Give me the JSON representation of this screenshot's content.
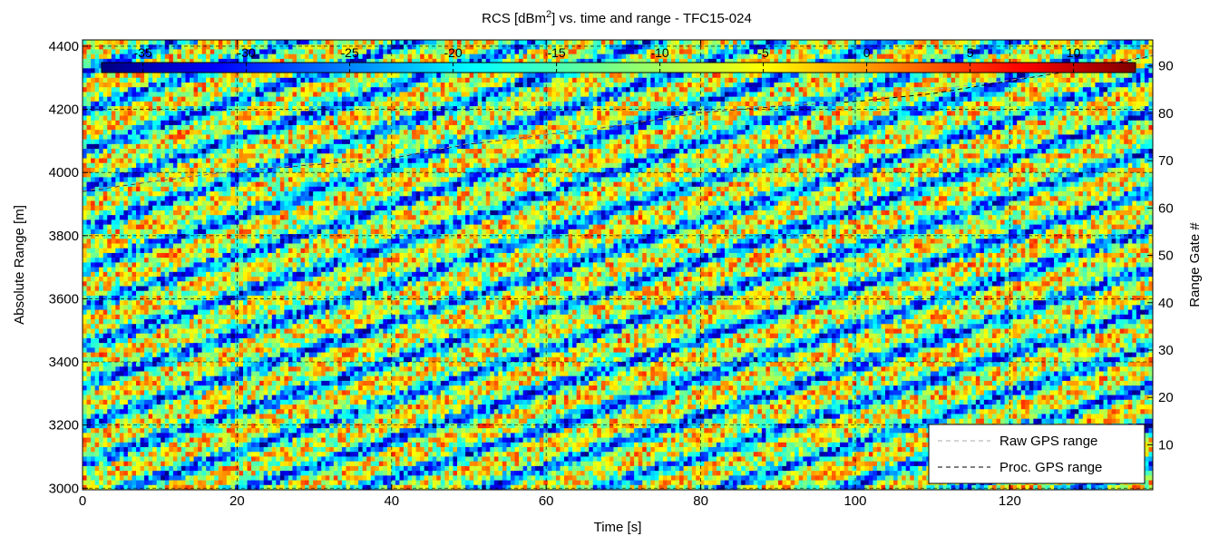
{
  "chart_data": {
    "type": "heatmap",
    "title_prefix": "RCS [dBm",
    "title_sup": "2",
    "title_suffix": "] vs. time and range - TFC15-024",
    "xlabel": "Time [s]",
    "ylabel": "Absolute Range [m]",
    "y2label": "Range Gate #",
    "xlim": [
      0,
      138.5
    ],
    "ylim": [
      2995,
      4420
    ],
    "y2lim": [
      0.5,
      95.5
    ],
    "xticks": [
      0,
      20,
      40,
      60,
      80,
      100,
      120
    ],
    "yticks": [
      3000,
      3200,
      3400,
      3600,
      3800,
      4000,
      4200,
      4400
    ],
    "y2ticks": [
      10,
      20,
      30,
      40,
      50,
      60,
      70,
      80,
      90
    ],
    "grid": true,
    "colorbar": {
      "placement": "top inside",
      "colormap": "jet",
      "range": [
        -37,
        13
      ],
      "ticks": [
        -35,
        -30,
        -25,
        -20,
        -15,
        -10,
        -5,
        0,
        5,
        10
      ]
    },
    "legend": {
      "placement": "bottom-right",
      "entries": [
        {
          "label": "Raw GPS range",
          "color": "#aaaaaa",
          "style": "dashed"
        },
        {
          "label": "Proc. GPS range",
          "color": "#000000",
          "style": "dashed"
        }
      ]
    },
    "series": [
      {
        "name": "Proc. GPS range",
        "x": [
          0,
          10,
          20,
          30,
          40,
          50,
          60,
          70,
          80,
          90,
          100,
          110,
          120,
          130,
          138.5
        ],
        "y": [
          3940,
          3975,
          4005,
          4025,
          4045,
          4090,
          4120,
          4150,
          4190,
          4210,
          4225,
          4250,
          4290,
          4330,
          4370
        ]
      },
      {
        "name": "Raw GPS range",
        "x": [
          0,
          10,
          20,
          30,
          40,
          50,
          60,
          70,
          80,
          90,
          98,
          100,
          110,
          120,
          130,
          138.5
        ],
        "y": [
          3942,
          3976,
          4006,
          4027,
          4047,
          4092,
          4121,
          4152,
          4192,
          4212,
          4222,
          4255,
          4262,
          4292,
          4332,
          4372
        ]
      }
    ]
  }
}
